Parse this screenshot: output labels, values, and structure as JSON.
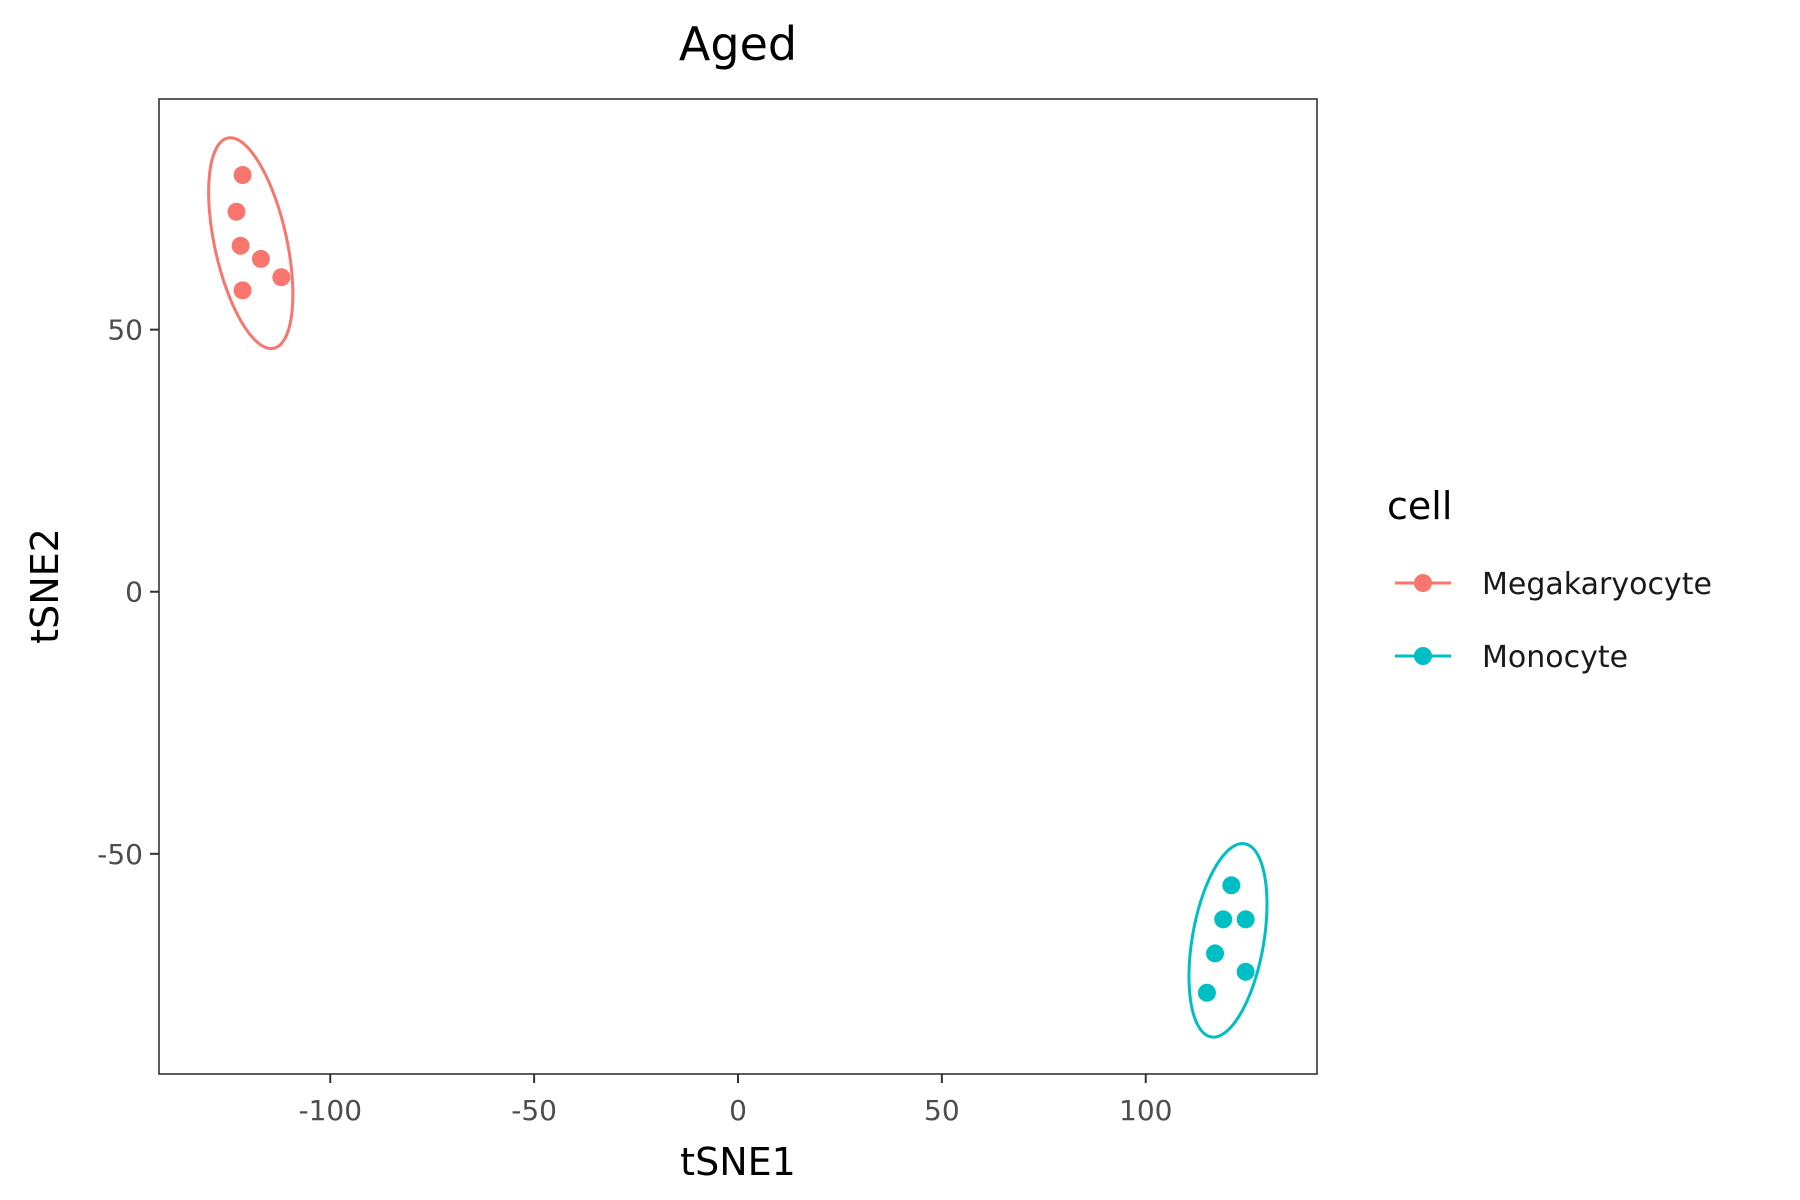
{
  "chart_data": {
    "type": "scatter",
    "title": "Aged",
    "xlabel": "tSNE1",
    "ylabel": "tSNE2",
    "xlim": [
      -142,
      142
    ],
    "ylim": [
      -92,
      94
    ],
    "xticks": [
      -100,
      -50,
      0,
      50,
      100
    ],
    "yticks": [
      -50,
      0,
      50
    ],
    "x_tick_labels": [
      "-100",
      "-50",
      "0",
      "50",
      "100"
    ],
    "y_tick_labels": [
      "-50",
      "0",
      "50"
    ],
    "grid": false,
    "legend_title": "cell",
    "legend_position": "right",
    "ellipses": true,
    "series": [
      {
        "name": "Megakaryocyte",
        "color": "#F8766D",
        "points": [
          {
            "x": -121.5,
            "y": 79.5
          },
          {
            "x": -123,
            "y": 72.5
          },
          {
            "x": -122,
            "y": 66
          },
          {
            "x": -117,
            "y": 63.5
          },
          {
            "x": -112,
            "y": 60
          },
          {
            "x": -121.5,
            "y": 57.5
          }
        ]
      },
      {
        "name": "Monocyte",
        "color": "#00BFC4",
        "points": [
          {
            "x": 121,
            "y": -56
          },
          {
            "x": 119,
            "y": -62.5
          },
          {
            "x": 124.5,
            "y": -62.5
          },
          {
            "x": 117,
            "y": -69
          },
          {
            "x": 124.5,
            "y": -72.5
          },
          {
            "x": 115,
            "y": -76.5
          }
        ]
      }
    ]
  }
}
